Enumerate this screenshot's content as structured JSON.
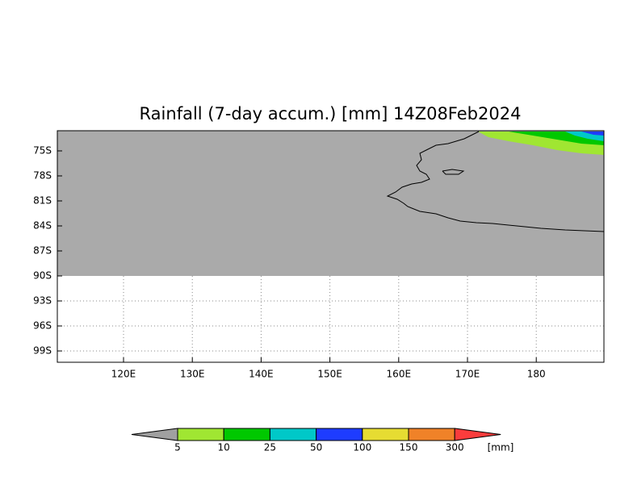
{
  "title": "Rainfall (7-day accum.) [mm] 14Z08Feb2024",
  "lat_labels": [
    "75S",
    "78S",
    "81S",
    "84S",
    "87S",
    "90S",
    "93S",
    "96S",
    "99S"
  ],
  "lon_labels": [
    "120E",
    "130E",
    "140E",
    "150E",
    "160E",
    "170E",
    "180"
  ],
  "legend": {
    "levels": [
      5,
      10,
      25,
      50,
      100,
      150,
      300
    ],
    "unit": "[mm]",
    "colors": [
      "#a0a0a0",
      "#a0e632",
      "#00c800",
      "#00c8c8",
      "#1e3cff",
      "#e6dc32",
      "#f08228",
      "#fa3c3c"
    ]
  }
}
